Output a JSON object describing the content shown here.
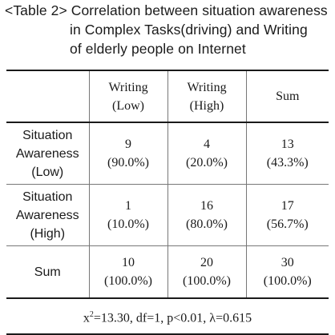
{
  "caption": {
    "line1": "<Table 2> Correlation between situation awareness",
    "line2": "in Complex Tasks(driving) and Writing",
    "line3": "of elderly people on Internet"
  },
  "table": {
    "headers": [
      {
        "line1": "Writing",
        "line2": "(Low)"
      },
      {
        "line1": "Writing",
        "line2": "(High)"
      },
      {
        "line1": "Sum",
        "line2": ""
      }
    ],
    "rows": [
      {
        "label": {
          "line1": "Situation",
          "line2": "Awareness",
          "line3": "(Low)"
        },
        "cells": [
          {
            "count": "9",
            "pct": "(90.0%)"
          },
          {
            "count": "4",
            "pct": "(20.0%)"
          },
          {
            "count": "13",
            "pct": "(43.3%)"
          }
        ]
      },
      {
        "label": {
          "line1": "Situation",
          "line2": "Awareness",
          "line3": "(High)"
        },
        "cells": [
          {
            "count": "1",
            "pct": "(10.0%)"
          },
          {
            "count": "16",
            "pct": "(80.0%)"
          },
          {
            "count": "17",
            "pct": "(56.7%)"
          }
        ]
      },
      {
        "label": {
          "line1": "Sum",
          "line2": "",
          "line3": ""
        },
        "cells": [
          {
            "count": "10",
            "pct": "(100.0%)"
          },
          {
            "count": "20",
            "pct": "(100.0%)"
          },
          {
            "count": "30",
            "pct": "(100.0%)"
          }
        ]
      }
    ],
    "footer": {
      "chi": "x",
      "chi_sup": "2",
      "stats": "=13.30, df=1, p<0.01, λ=0.615"
    }
  }
}
